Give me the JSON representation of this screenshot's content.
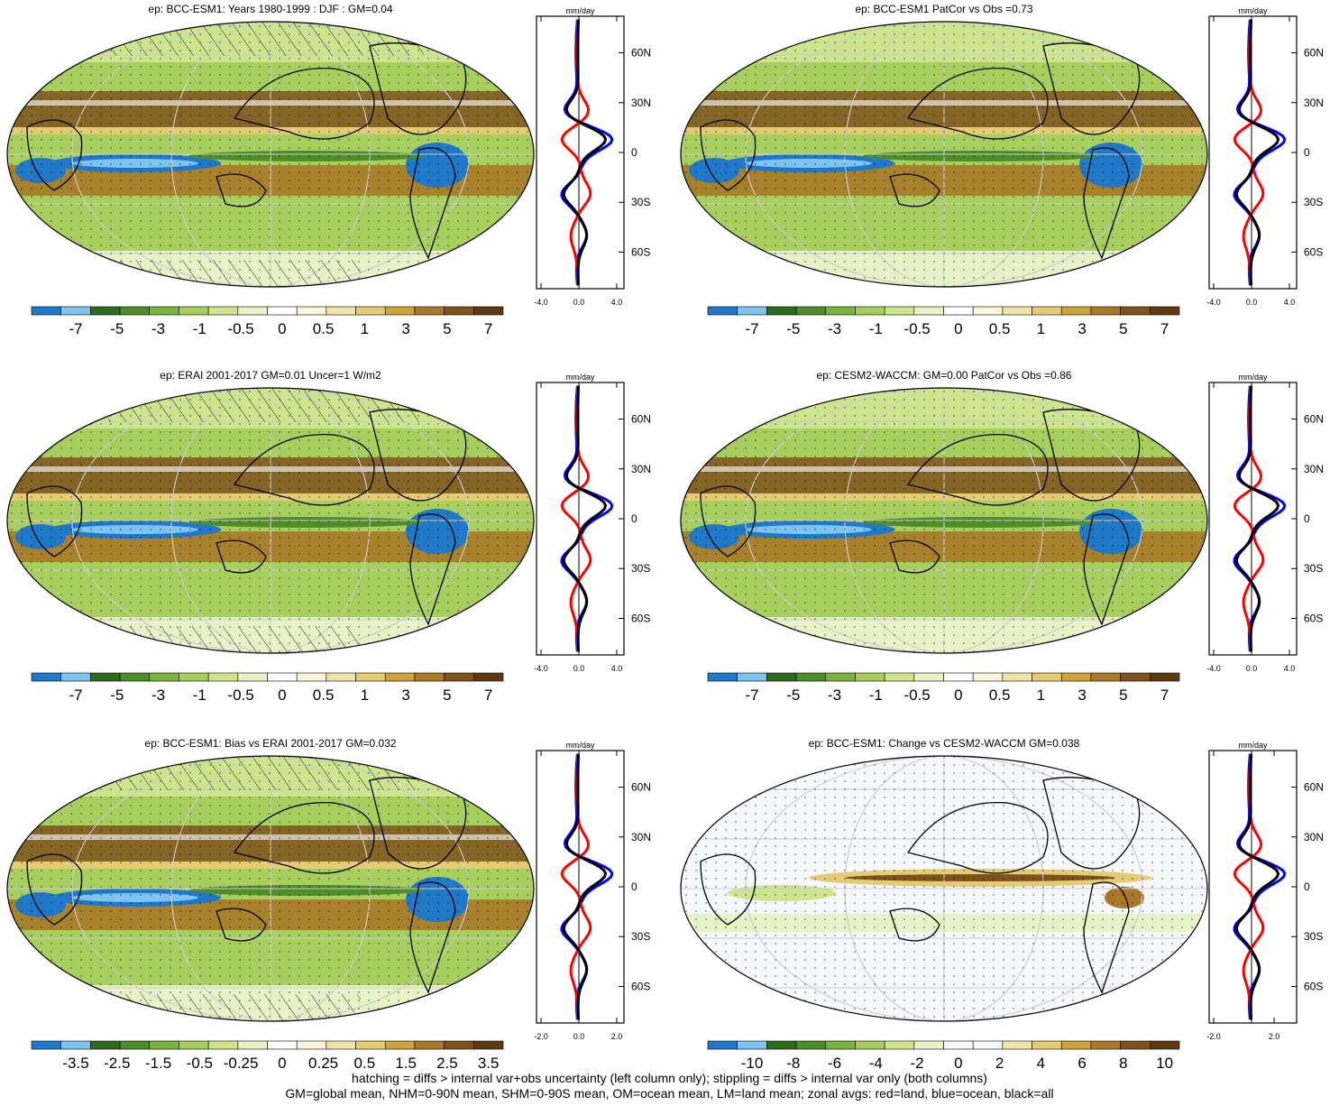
{
  "panels": [
    {
      "title": "ep: BCC-ESM1: Years 1980-1999 : DJF : GM=0.04",
      "colorbar_labels": [
        "-7",
        "-5",
        "-3",
        "-1",
        "-0.5",
        "0",
        "0.5",
        "1",
        "3",
        "5",
        "7"
      ],
      "colorbar_scheme": "precip",
      "zonal_xticks": [
        "-4.0",
        "0.0",
        "4.0"
      ],
      "zonal_unit": "mm/day",
      "hatching": true
    },
    {
      "title": "ep: BCC-ESM1 PatCor vs Obs =0.73",
      "colorbar_labels": [
        "-7",
        "-5",
        "-3",
        "-1",
        "-0.5",
        "0",
        "0.5",
        "1",
        "3",
        "5",
        "7"
      ],
      "colorbar_scheme": "precip",
      "zonal_xticks": [
        "-4.0",
        "0.0",
        "4.0"
      ],
      "zonal_unit": "mm/day",
      "hatching": false
    },
    {
      "title": "ep: ERAI 2001-2017 GM=0.01 Uncer=1 W/m2",
      "colorbar_labels": [
        "-7",
        "-5",
        "-3",
        "-1",
        "-0.5",
        "0",
        "0.5",
        "1",
        "3",
        "5",
        "7"
      ],
      "colorbar_scheme": "precip",
      "zonal_xticks": [
        "-4.0",
        "0.0",
        "4.0"
      ],
      "zonal_unit": "mm/day",
      "hatching": true
    },
    {
      "title": "ep: CESM2-WACCM: GM=0.00 PatCor vs Obs =0.86",
      "colorbar_labels": [
        "-7",
        "-5",
        "-3",
        "-1",
        "-0.5",
        "0",
        "0.5",
        "1",
        "3",
        "5",
        "7"
      ],
      "colorbar_scheme": "precip",
      "zonal_xticks": [
        "-4.0",
        "0.0",
        "4.0"
      ],
      "zonal_unit": "mm/day",
      "hatching": false
    },
    {
      "title": "ep: BCC-ESM1: Bias vs ERAI 2001-2017 GM=0.032",
      "colorbar_labels": [
        "-3.5",
        "-2.5",
        "-1.5",
        "-0.5",
        "-0.25",
        "0",
        "0.25",
        "0.5",
        "1.5",
        "2.5",
        "3.5"
      ],
      "colorbar_scheme": "precip",
      "zonal_xticks": [
        "-2.0",
        "0.0",
        "2.0"
      ],
      "zonal_unit": "mm/day",
      "hatching": true
    },
    {
      "title": "ep: BCC-ESM1: Change vs CESM2-WACCM GM=0.038",
      "colorbar_labels": [
        "-10",
        "-8",
        "-6",
        "-4",
        "-2",
        "0",
        "2",
        "4",
        "6",
        "8",
        "10"
      ],
      "colorbar_scheme": "change",
      "zonal_xticks": [
        "-2.0",
        "2.0"
      ],
      "zonal_unit": "mm/day",
      "hatching": false
    }
  ],
  "zonal_yticks": [
    "60N",
    "30N",
    "0",
    "30S",
    "60S"
  ],
  "colors": {
    "precip_scale": [
      "#1f78c8",
      "#7ec4ee",
      "#2e6b1f",
      "#4f8d2a",
      "#7cb241",
      "#a7cf5e",
      "#cde68e",
      "#e7f2c6",
      "#ffffff",
      "#faf5dc",
      "#efe5a8",
      "#e4cc75",
      "#cda33f",
      "#a97828",
      "#7f521c",
      "#5e3a14"
    ],
    "change_scale": [
      "#1f78c8",
      "#7ec4ee",
      "#2e6b1f",
      "#4f8d2a",
      "#7cb241",
      "#a7cf5e",
      "#cde68e",
      "#e7f2c6",
      "#f6f8fb",
      "#f6f8fb",
      "#efe5a8",
      "#e4cc75",
      "#cda33f",
      "#a97828",
      "#7f521c",
      "#5e3a14"
    ],
    "land": "#ff0000",
    "ocean": "#0000ff",
    "all": "#000000"
  },
  "footer": {
    "line1": "hatching = diffs > internal var+obs uncertainty (left column only); stippling = diffs > internal var only (both columns)",
    "line2": "GM=global mean, NHM=0-90N mean, SHM=0-90S mean, OM=ocean mean, LM=land mean; zonal avgs: red=land, blue=ocean, black=all"
  }
}
